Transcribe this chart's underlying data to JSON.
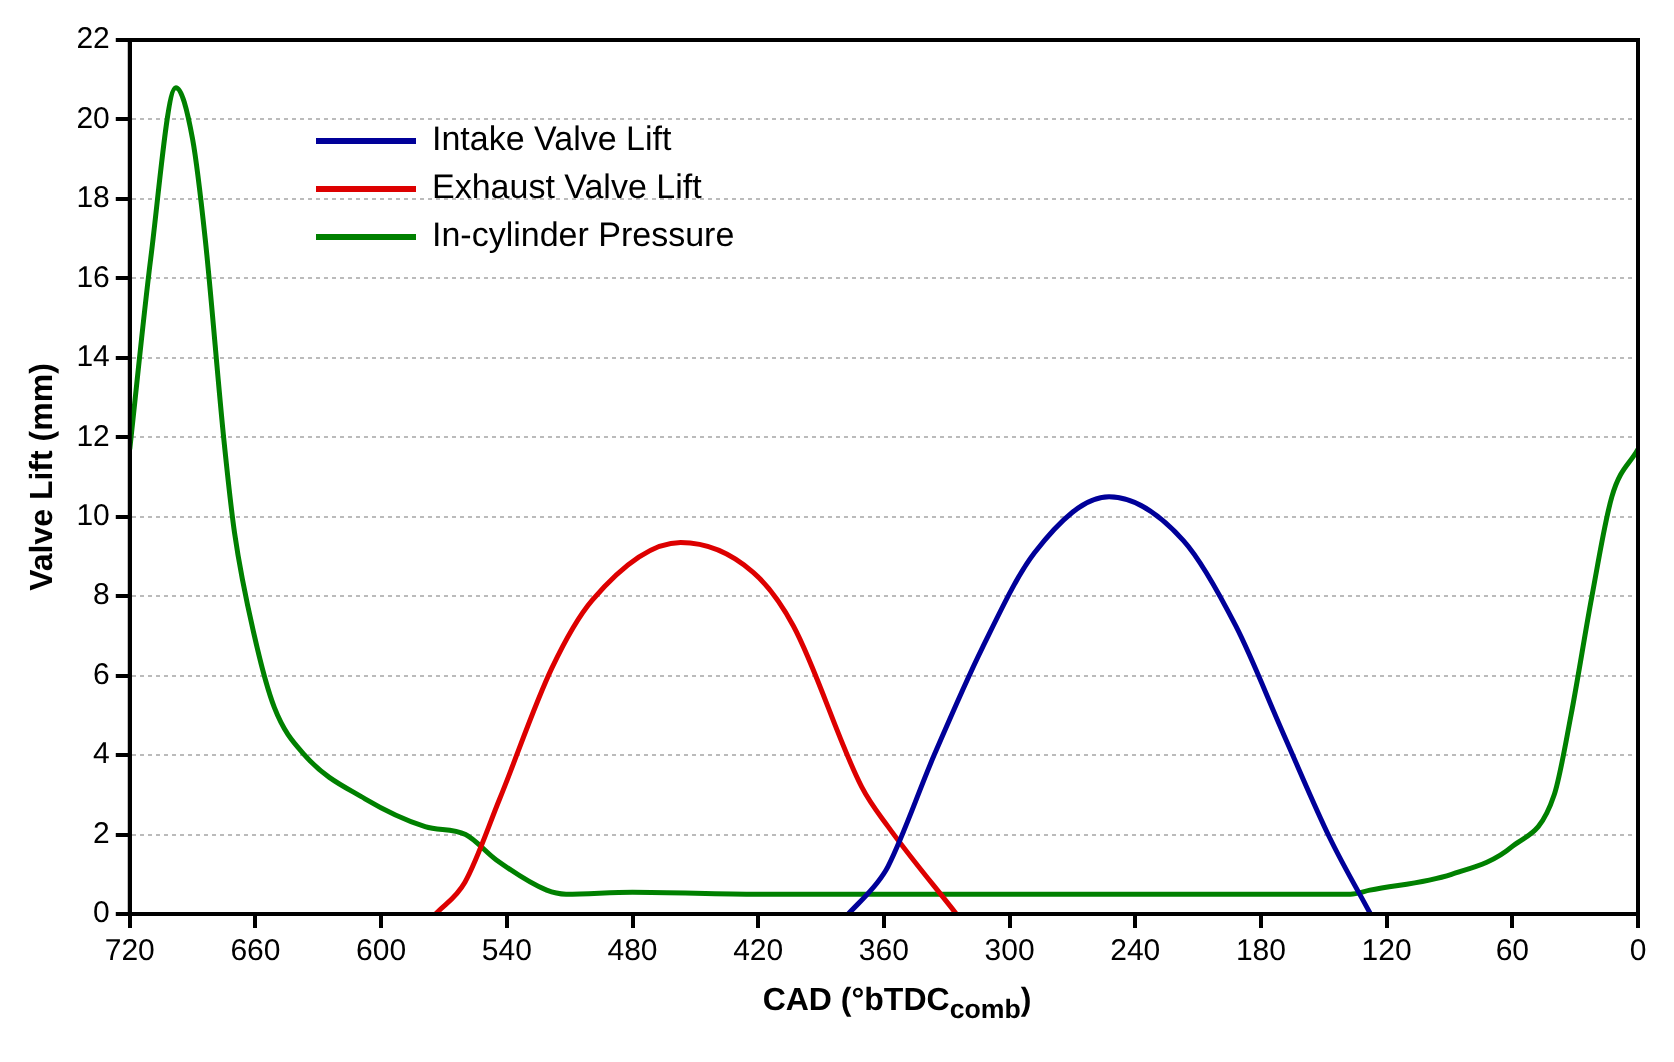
{
  "chart_data": {
    "type": "line",
    "xlabel": "CAD (°bTDC$_{comb}$)",
    "ylabel": "Valve Lift (mm)",
    "xlim": [
      720,
      0
    ],
    "xticks": [
      720,
      660,
      600,
      540,
      480,
      420,
      360,
      300,
      240,
      180,
      120,
      60,
      0
    ],
    "ylim": [
      0,
      22
    ],
    "yticks": [
      0,
      2,
      4,
      6,
      8,
      10,
      12,
      14,
      16,
      18,
      20,
      22
    ],
    "grid": "y",
    "legend": "top left",
    "marker": "none",
    "line_style": "solid",
    "series": [
      {
        "name": "Intake Valve Lift",
        "color": "#000099",
        "x": [
          377,
          363,
          358,
          336,
          313,
          288,
          252.5,
          217,
          192,
          169,
          147,
          127.7
        ],
        "values": [
          0,
          0.8,
          1.2,
          4.0,
          6.7,
          9.1,
          10.5,
          9.4,
          7.25,
          4.5,
          1.9,
          0
        ]
      },
      {
        "name": "Exhaust Valve Lift",
        "color": "#dd0000",
        "x": [
          574,
          560,
          543.4,
          518.4,
          499.2,
          457,
          422.4,
          403.2,
          370.6,
          358,
          325.4
        ],
        "values": [
          0,
          0.8,
          2.9,
          6.2,
          7.9,
          9.35,
          8.6,
          7.25,
          3.2,
          2.2,
          0
        ]
      },
      {
        "name": "In-cylinder Pressure",
        "color": "#008000",
        "x": [
          720,
          710,
          698,
          690,
          684,
          675,
          670,
          660.5,
          651,
          636.5,
          607.7,
          579,
          559.7,
          545,
          521,
          511.7,
          480,
          420,
          360,
          300,
          240,
          180,
          137.3,
          128,
          89,
          60,
          40,
          32,
          22,
          12.5,
          0
        ],
        "values": [
          11.7,
          16.5,
          20.8,
          19.5,
          17,
          11.9,
          9.6,
          7.0,
          5.2,
          4.0,
          2.9,
          2.2,
          2.0,
          1.36,
          0.6,
          0.5,
          0.55,
          0.5,
          0.5,
          0.5,
          0.5,
          0.5,
          0.5,
          0.6,
          1.0,
          1.7,
          3,
          5,
          8,
          10.5,
          11.7
        ]
      }
    ]
  }
}
